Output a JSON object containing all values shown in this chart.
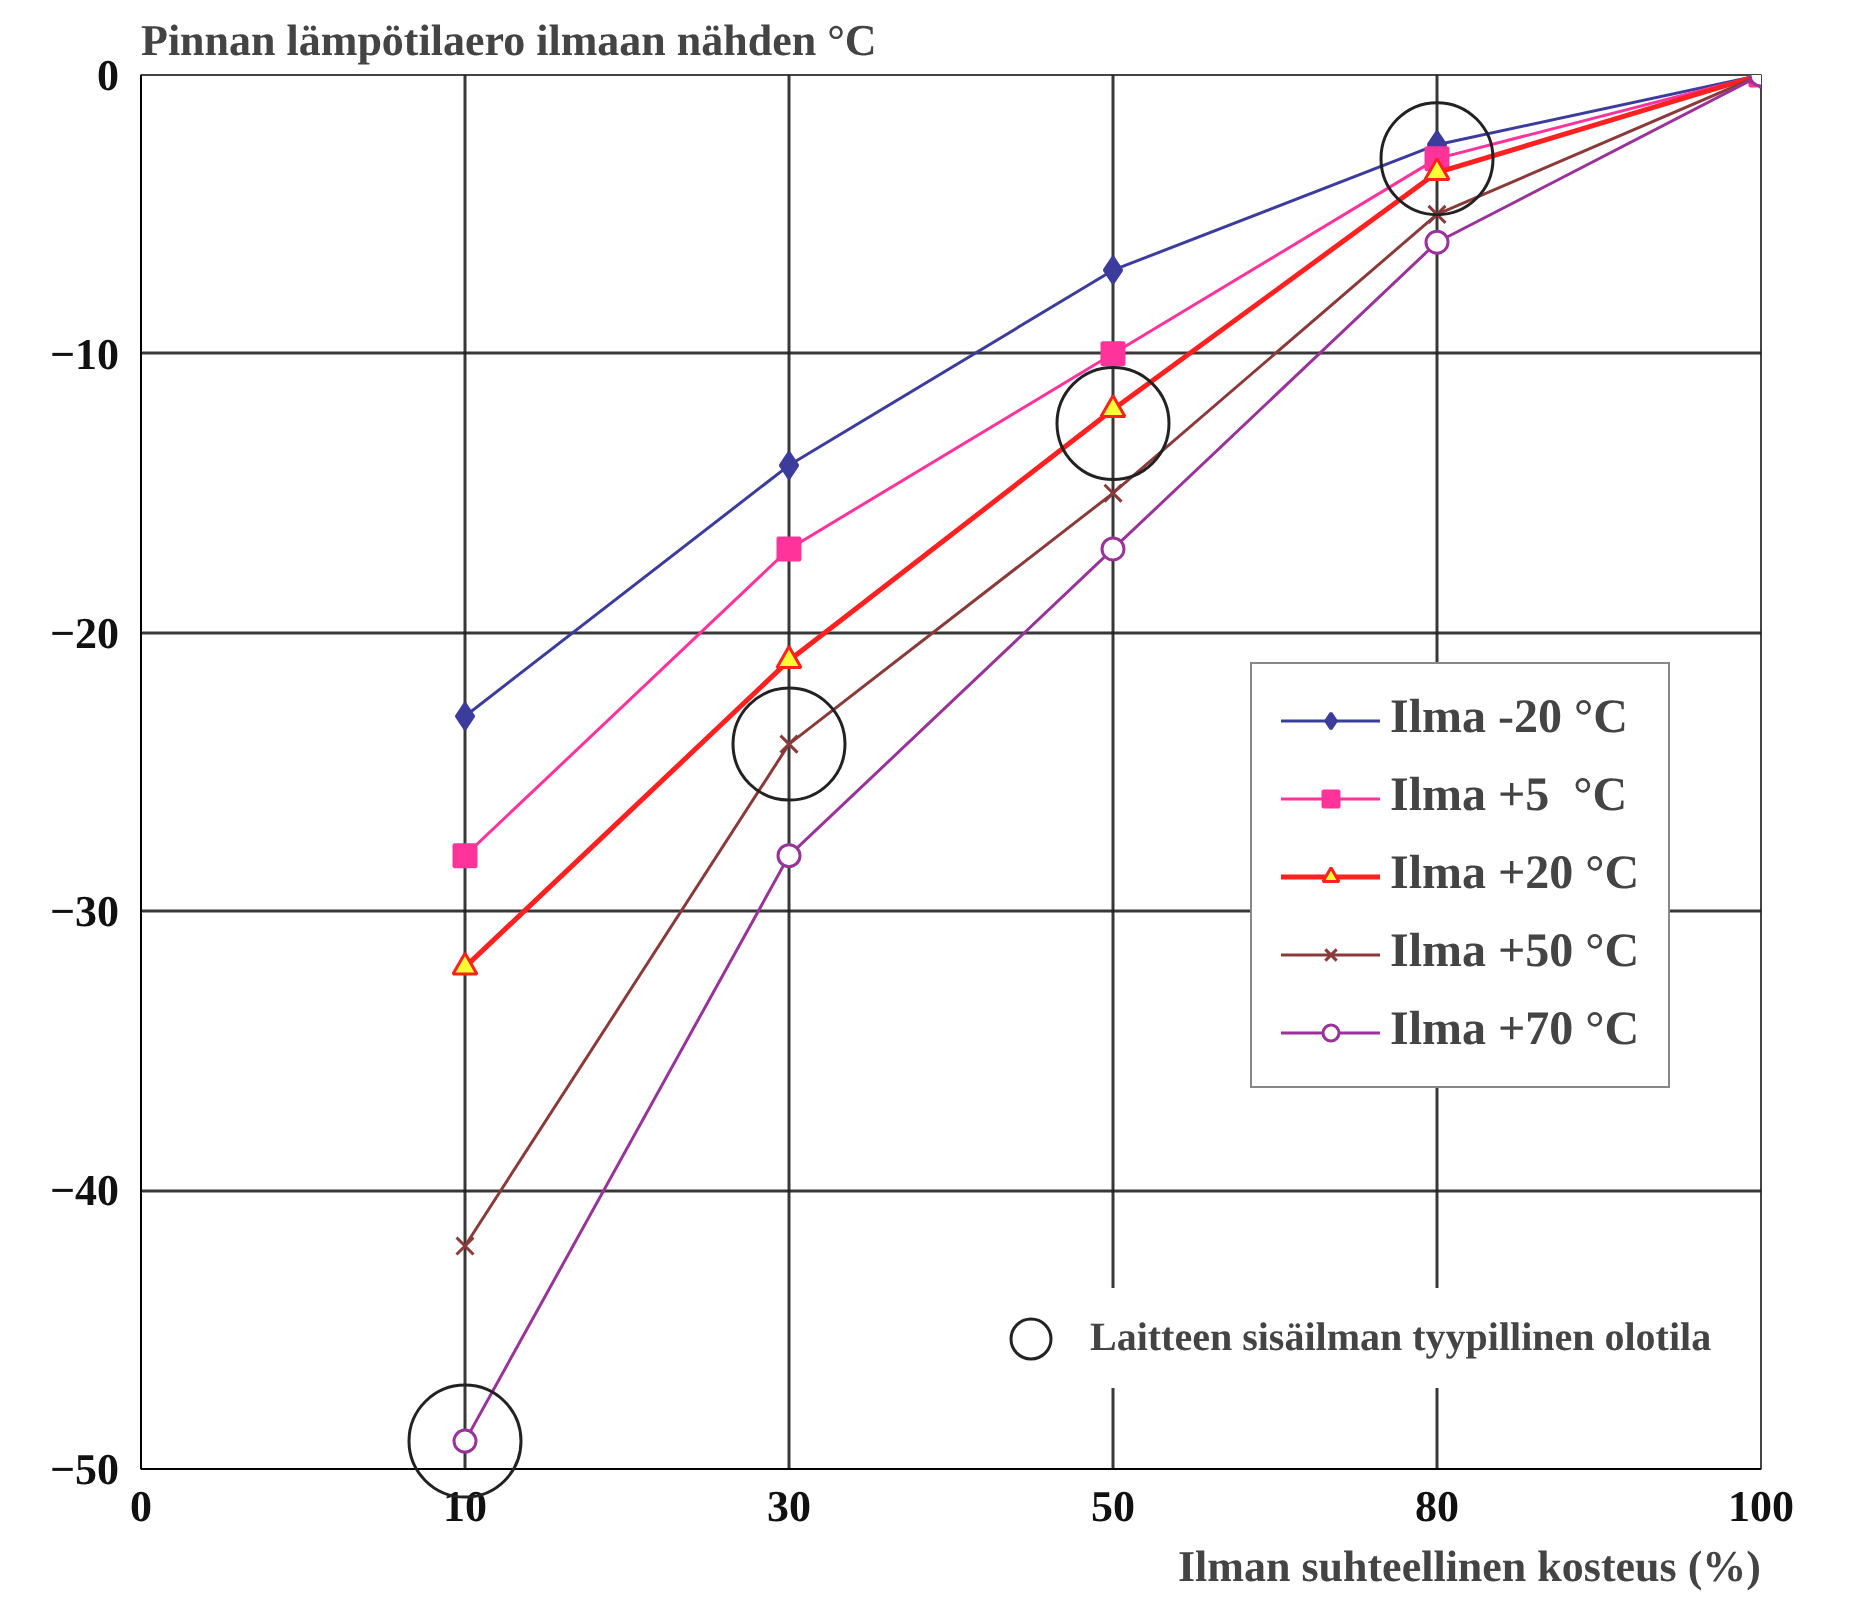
{
  "chart_data": {
    "type": "line",
    "ylabel": "Pinnan lämpötilaero ilmaan nähden  °C",
    "xlabel": "Ilman suhteellinen kosteus (%)",
    "categories": [
      "0",
      "10",
      "30",
      "50",
      "80",
      "100"
    ],
    "ylim": [
      -50,
      0
    ],
    "yticks": [
      -50,
      -40,
      -30,
      -20,
      -10,
      0
    ],
    "grid": true,
    "legend": "right",
    "series": [
      {
        "name": "Ilma -20 °C",
        "color": "#3c3c9c",
        "marker": "diamond",
        "values": [
          null,
          -23,
          -14,
          -7,
          -2.5,
          0
        ]
      },
      {
        "name": "Ilma +5  °C",
        "color": "#ff3399",
        "marker": "square",
        "values": [
          null,
          -28,
          -17,
          -10,
          -3,
          0
        ]
      },
      {
        "name": "Ilma +20 °C",
        "color": "#ff2020",
        "marker": "triangle",
        "values": [
          null,
          -32,
          -21,
          -12,
          -3.5,
          0
        ]
      },
      {
        "name": "Ilma +50 °C",
        "color": "#8b3a3a",
        "marker": "cross",
        "values": [
          null,
          -42,
          -24,
          -15,
          -5,
          0
        ]
      },
      {
        "name": "Ilma +70 °C",
        "color": "#993399",
        "marker": "circle",
        "values": [
          null,
          -49,
          -28,
          -17,
          -6,
          0
        ]
      },
      {
        "name": "Laitteen sisäilman tyypillinen olotila",
        "type": "scatter",
        "color": "#222222",
        "marker": "circle",
        "x": [
          "10",
          "30",
          "50",
          "80"
        ],
        "values": [
          -49,
          -24,
          -12.5,
          -3
        ]
      }
    ]
  }
}
